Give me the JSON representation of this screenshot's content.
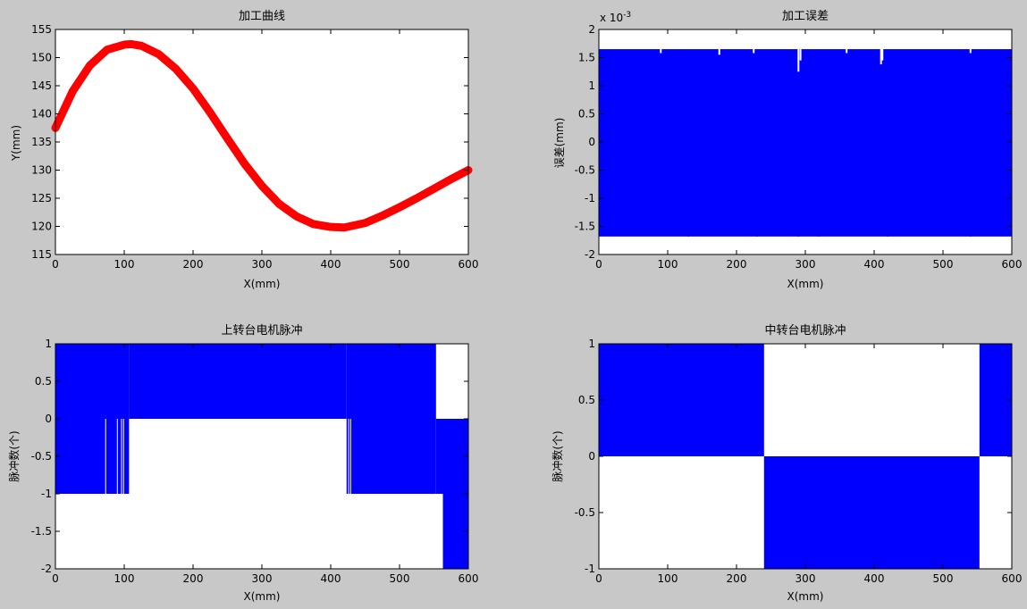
{
  "figure": {
    "background": "#c8c8c8",
    "line_color": "#ff0000",
    "fill_color": "#0000ff"
  },
  "chart_data": [
    {
      "type": "line",
      "title": "加工曲线",
      "xlabel": "X(mm)",
      "ylabel": "Y(mm)",
      "xlim": [
        0,
        600
      ],
      "ylim": [
        115,
        155
      ],
      "xticks": [
        "0",
        "100",
        "200",
        "300",
        "400",
        "500",
        "600"
      ],
      "yticks": [
        "115",
        "120",
        "125",
        "130",
        "135",
        "140",
        "145",
        "150",
        "155"
      ],
      "series": [
        {
          "x": [
            0,
            25,
            50,
            75,
            100,
            110,
            125,
            150,
            175,
            200,
            225,
            250,
            275,
            300,
            325,
            350,
            375,
            400,
            420,
            450,
            475,
            500,
            525,
            550,
            575,
            600
          ],
          "y": [
            137.5,
            144.0,
            148.6,
            151.4,
            152.3,
            152.4,
            152.1,
            150.6,
            148.0,
            144.5,
            140.2,
            135.6,
            131.1,
            127.2,
            124.0,
            121.8,
            120.4,
            119.9,
            119.8,
            120.6,
            121.9,
            123.4,
            125.0,
            126.7,
            128.4,
            130.0
          ]
        }
      ]
    },
    {
      "type": "line",
      "title": "加工误差",
      "xlabel": "X(mm)",
      "ylabel": "误差(mm)",
      "scale_label": "x 10",
      "scale_exp": "-3",
      "xlim": [
        0,
        600
      ],
      "ylim": [
        -2,
        2
      ],
      "xticks": [
        "0",
        "100",
        "200",
        "300",
        "400",
        "500",
        "600"
      ],
      "yticks": [
        "-2",
        "-1.5",
        "-1",
        "-0.5",
        "0",
        "0.5",
        "1",
        "1.5",
        "2"
      ],
      "upper_envelope": 1.65,
      "lower_envelope": -1.68,
      "upper_dips": [
        [
          90,
          1.58
        ],
        [
          175,
          1.55
        ],
        [
          225,
          1.58
        ],
        [
          290,
          1.25
        ],
        [
          293,
          1.45
        ],
        [
          360,
          1.58
        ],
        [
          410,
          1.38
        ],
        [
          412,
          1.45
        ],
        [
          540,
          1.58
        ]
      ],
      "lower_spikes": [
        [
          130,
          -1.48
        ],
        [
          230,
          -1.5
        ],
        [
          290,
          -1.38
        ],
        [
          320,
          -1.55
        ],
        [
          420,
          -1.52
        ],
        [
          540,
          -1.55
        ]
      ]
    },
    {
      "type": "area",
      "title": "上转台电机脉冲",
      "xlabel": "X(mm)",
      "ylabel": "脉冲数(个)",
      "xlim": [
        0,
        600
      ],
      "ylim": [
        -2,
        1
      ],
      "xticks": [
        "0",
        "100",
        "200",
        "300",
        "400",
        "500",
        "600"
      ],
      "yticks": [
        "-2",
        "-1.5",
        "-1",
        "-0.5",
        "0",
        "0.5",
        "1"
      ],
      "regions": [
        {
          "x0": 0,
          "x1": 107,
          "y0": -1,
          "y1": 1
        },
        {
          "x0": 107,
          "x1": 423,
          "y0": 0,
          "y1": 1
        },
        {
          "x0": 423,
          "x1": 553,
          "y0": -1,
          "y1": 1
        },
        {
          "x0": 553,
          "x1": 563,
          "y0": -1,
          "y1": 0
        },
        {
          "x0": 563,
          "x1": 600,
          "y0": -2,
          "y1": 0
        }
      ],
      "white_lines": [
        [
          73,
          -1,
          0
        ],
        [
          90,
          -1,
          0
        ],
        [
          96,
          -1,
          0
        ],
        [
          99,
          -1,
          0
        ],
        [
          426,
          -1,
          0
        ],
        [
          429,
          -1,
          0
        ],
        [
          557,
          -2,
          -1
        ]
      ]
    },
    {
      "type": "area",
      "title": "中转台电机脉冲",
      "xlabel": "X(mm)",
      "ylabel": "脉冲数(个)",
      "xlim": [
        0,
        600
      ],
      "ylim": [
        -1,
        1
      ],
      "xticks": [
        "0",
        "100",
        "200",
        "300",
        "400",
        "500",
        "600"
      ],
      "yticks": [
        "-1",
        "-0.5",
        "0",
        "0.5",
        "1"
      ],
      "regions": [
        {
          "x0": 0,
          "x1": 240,
          "y0": 0,
          "y1": 1
        },
        {
          "x0": 240,
          "x1": 553,
          "y0": -1,
          "y1": 0
        },
        {
          "x0": 553,
          "x1": 600,
          "y0": 0,
          "y1": 1
        }
      ],
      "white_lines": []
    }
  ]
}
